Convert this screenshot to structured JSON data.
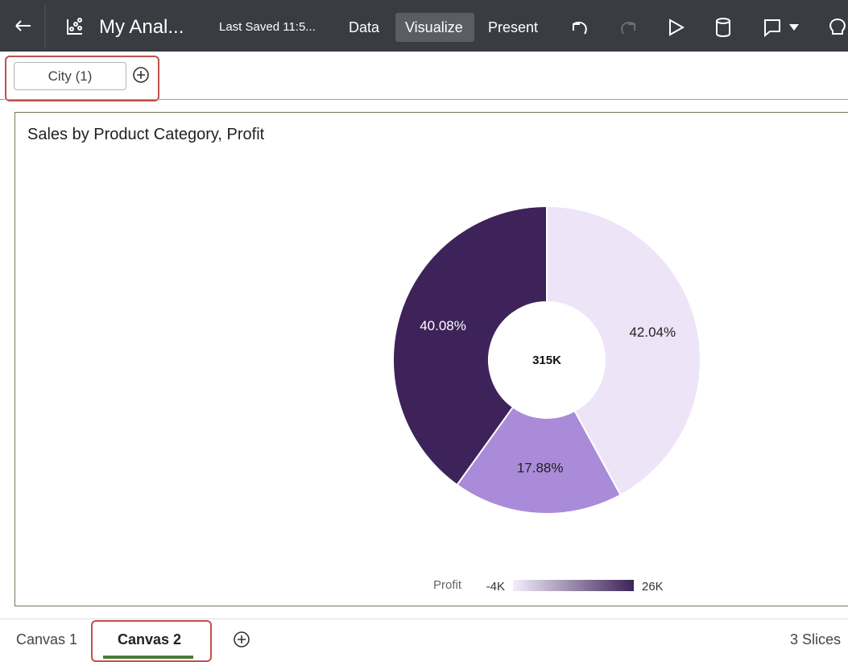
{
  "toolbar": {
    "title": "My Anal...",
    "saved": "Last Saved 11:5...",
    "tabs": [
      "Data",
      "Visualize",
      "Present"
    ]
  },
  "filter_bar": {
    "filters": [
      "City (1)"
    ]
  },
  "visualization": {
    "type": "pie",
    "title": "Sales by Product Category, Profit",
    "donut": true,
    "values": [
      42.04,
      17.88,
      40.08
    ],
    "value_labels": [
      "42.04%",
      "17.88%",
      "40.08%"
    ],
    "colors": [
      "#ede4f8",
      "#a98bd9",
      "#3d2359"
    ],
    "label_colors": [
      "#222222",
      "#222222",
      "#ffffff"
    ],
    "center_label": "315K",
    "legend": {
      "title": "Profit",
      "range": [
        {
          "value": -4000,
          "label": "-4K"
        },
        {
          "value": 26000,
          "label": "26K"
        }
      ],
      "colors": [
        "#f3eefa",
        "#3d2359"
      ]
    }
  },
  "canvas_tabs": {
    "tabs": [
      "Canvas 1",
      "Canvas 2"
    ],
    "active": 1,
    "slices": "3 Slices"
  }
}
